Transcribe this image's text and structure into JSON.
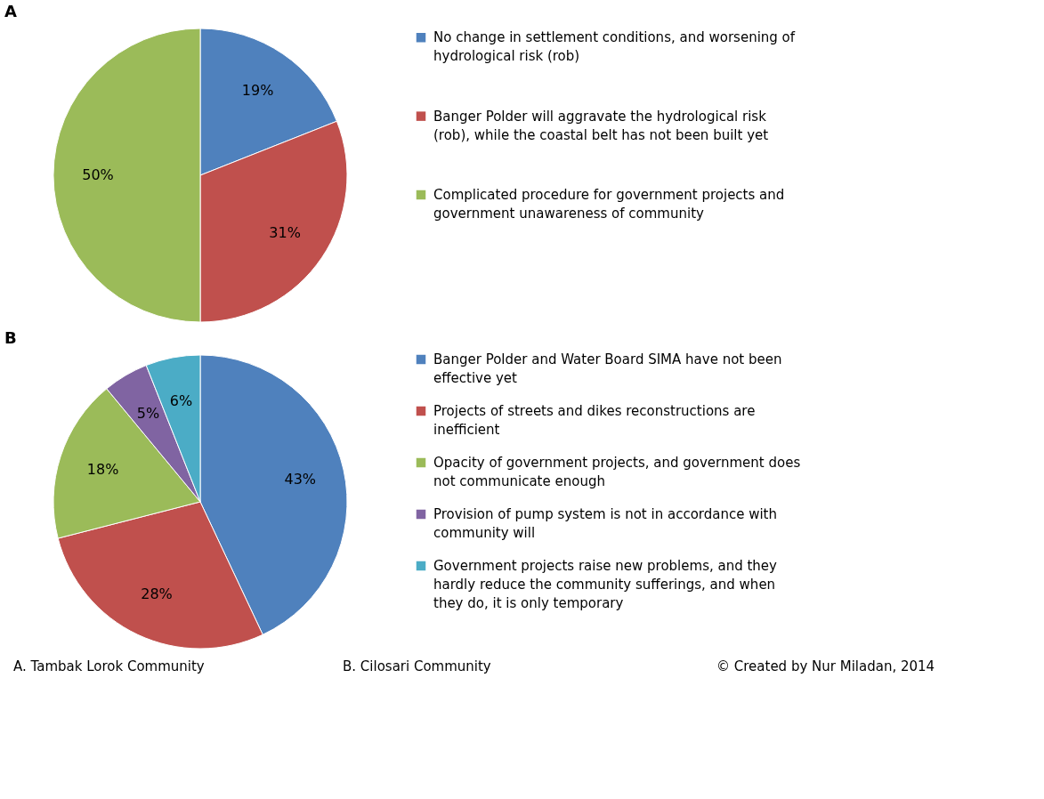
{
  "chart_data": [
    {
      "type": "pie",
      "title": "A",
      "legend": "right",
      "categories": [
        "No change in settlement conditions, and worsening of hydrological risk (rob)",
        "Banger Polder will aggravate the hydrological risk (rob), while the coastal belt has not been built yet",
        "Complicated procedure for government projects and government unawareness of community"
      ],
      "values": [
        19,
        31,
        50
      ],
      "colors": [
        "#4f81bd",
        "#c0504d",
        "#9bbb59"
      ],
      "value_labels": [
        "19%",
        "31%",
        "50%"
      ]
    },
    {
      "type": "pie",
      "title": "B",
      "legend": "right",
      "categories": [
        "Banger Polder and Water Board SIMA have not been effective yet",
        "Projects of streets and dikes reconstructions are inefficient",
        "Opacity of government projects, and government does not communicate enough",
        "Provision of pump system is not in accordance with community will",
        "Government projects raise new problems, and they hardly reduce the community sufferings, and when they do, it is only temporary"
      ],
      "values": [
        43,
        28,
        18,
        5,
        6
      ],
      "colors": [
        "#4f81bd",
        "#c0504d",
        "#9bbb59",
        "#8064a2",
        "#4bacc6"
      ],
      "value_labels": [
        "43%",
        "28%",
        "18%",
        "5%",
        "6%"
      ],
      "annotations": [
        "A.  Tambak Lorok Community",
        "B. Cilosari Community",
        "© Created by Nur Miladan, 2014"
      ]
    }
  ]
}
